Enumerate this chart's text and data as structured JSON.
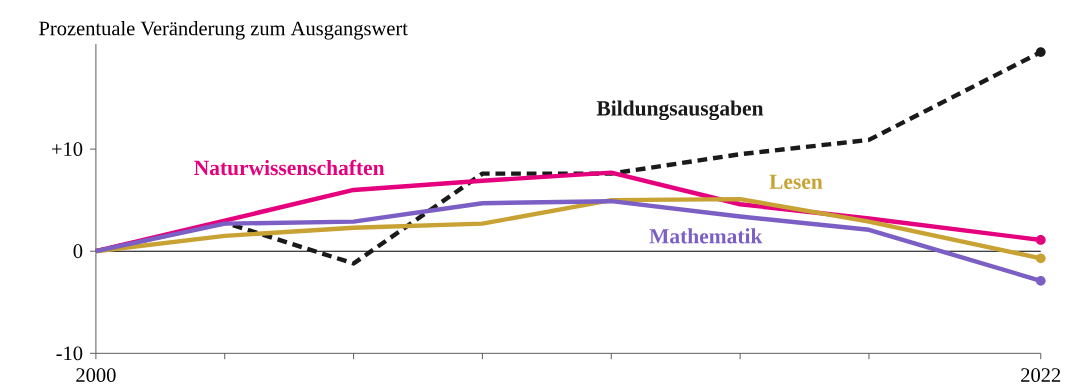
{
  "chart_data": {
    "type": "line",
    "ylabel": "Prozentuale Veränderung zum Ausgangswert",
    "x": [
      2000,
      2003,
      2006,
      2009,
      2012,
      2015,
      2018,
      2022
    ],
    "xlim": [
      2000,
      2022
    ],
    "ylim": [
      -10,
      20.3
    ],
    "xticks": [
      2000,
      {
        "value": 2003,
        "label": null
      },
      {
        "value": 2006,
        "label": null
      },
      {
        "value": 2009,
        "label": null
      },
      {
        "value": 2012,
        "label": null
      },
      {
        "value": 2015,
        "label": null
      },
      {
        "value": 2018,
        "label": null
      },
      2022
    ],
    "yticks": [
      {
        "value": -10,
        "label": "-10"
      },
      0,
      {
        "value": 10,
        "label": "+10"
      }
    ],
    "series": [
      {
        "name": "Bildungsausgaben",
        "color": "#1a1a1a",
        "line_style": "dashed",
        "values": [
          0,
          2.8,
          -1.2,
          7.6,
          7.6,
          9.5,
          10.9,
          19.5
        ]
      },
      {
        "name": "Naturwissenschaften",
        "color": "#e5007e",
        "values": [
          0,
          3.0,
          6.0,
          6.9,
          7.7,
          4.6,
          3.2,
          1.1
        ]
      },
      {
        "name": "Lesen",
        "color": "#c8a232",
        "values": [
          0,
          1.5,
          2.3,
          2.7,
          5.0,
          5.1,
          2.9,
          -0.7
        ]
      },
      {
        "name": "Mathematik",
        "color": "#7b5fc4",
        "values": [
          0,
          2.7,
          2.9,
          4.7,
          4.9,
          3.4,
          2.1,
          -2.9
        ]
      }
    ],
    "ref_lines": [
      {
        "axis": "y",
        "value": 0,
        "color": "#000000"
      }
    ],
    "grid": false
  }
}
